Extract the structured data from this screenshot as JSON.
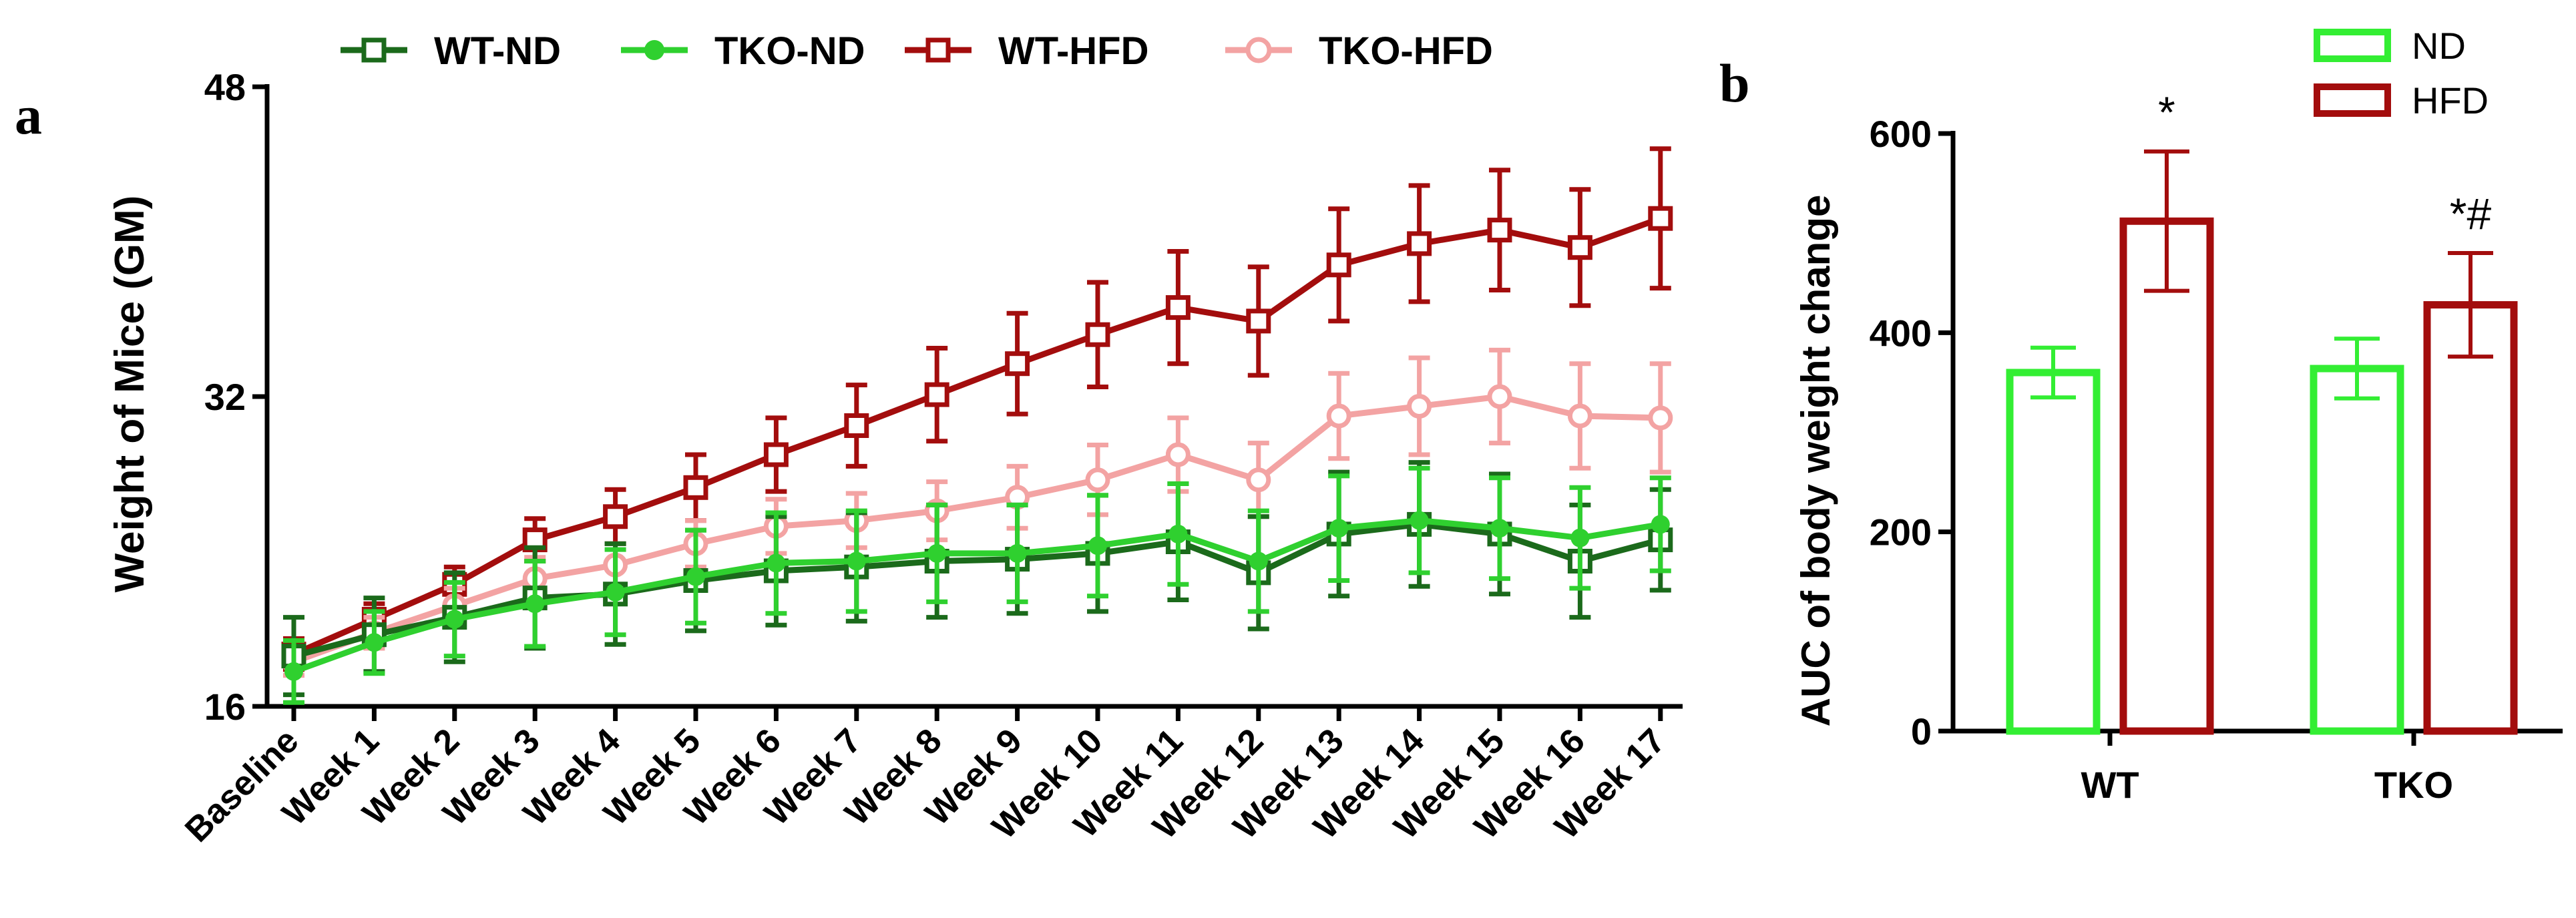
{
  "colors": {
    "wt_nd": "#1b6a1b",
    "tko_nd": "#2fd02f",
    "wt_hfd": "#a30d0d",
    "tko_hfd": "#f3a3a3",
    "nd_bar": "#33ee33",
    "hfd_bar": "#a30d0d",
    "axis": "#000000"
  },
  "chart_data": [
    {
      "panel": "a",
      "type": "line",
      "ylabel": "Weight of Mice (GM)",
      "xlabel": "",
      "ylim": [
        16,
        48
      ],
      "yticks": [
        "16",
        "32",
        "48"
      ],
      "categories": [
        "Baseline",
        "Week 1",
        "Week 2",
        "Week 3",
        "Week 4",
        "Week 5",
        "Week 6",
        "Week 7",
        "Week 8",
        "Week 9",
        "Week 10",
        "Week 11",
        "Week 12",
        "Week 13",
        "Week 14",
        "Week 15",
        "Week 16",
        "Week 17"
      ],
      "legend_position": "top",
      "series": [
        {
          "name": "WT-ND",
          "marker": "open-square",
          "color_key": "wt_nd",
          "values": [
            18.6,
            19.7,
            20.6,
            21.6,
            21.8,
            22.5,
            23.0,
            23.2,
            23.5,
            23.6,
            23.9,
            24.5,
            22.9,
            24.9,
            25.4,
            24.9,
            23.5,
            24.6
          ],
          "errors": [
            2.0,
            1.9,
            2.3,
            2.6,
            2.6,
            2.6,
            2.8,
            2.8,
            2.9,
            2.8,
            3.0,
            3.0,
            2.9,
            3.2,
            3.2,
            3.1,
            2.9,
            2.6
          ]
        },
        {
          "name": "TKO-ND",
          "marker": "filled-circle",
          "color_key": "tko_nd",
          "values": [
            17.8,
            19.3,
            20.5,
            21.3,
            21.9,
            22.7,
            23.4,
            23.5,
            23.9,
            23.9,
            24.3,
            24.9,
            23.5,
            25.2,
            25.6,
            25.2,
            24.7,
            25.4
          ],
          "errors": [
            1.6,
            1.6,
            1.9,
            2.2,
            2.2,
            2.4,
            2.6,
            2.6,
            2.5,
            2.5,
            2.6,
            2.6,
            2.6,
            2.7,
            2.7,
            2.6,
            2.6,
            2.4
          ]
        },
        {
          "name": "WT-HFD",
          "marker": "open-square",
          "color_key": "wt_hfd",
          "values": [
            18.7,
            20.5,
            22.3,
            24.6,
            25.8,
            27.3,
            29.0,
            30.5,
            32.1,
            33.7,
            35.2,
            36.6,
            35.9,
            38.8,
            39.9,
            40.6,
            39.7,
            41.2
          ],
          "errors": [
            0.8,
            0.8,
            0.9,
            1.1,
            1.4,
            1.7,
            1.9,
            2.1,
            2.4,
            2.6,
            2.7,
            2.9,
            2.8,
            2.9,
            3.0,
            3.1,
            3.0,
            3.6
          ]
        },
        {
          "name": "TKO-HFD",
          "marker": "open-circle",
          "color_key": "tko_hfd",
          "values": [
            18.3,
            19.8,
            21.2,
            22.6,
            23.3,
            24.4,
            25.3,
            25.6,
            26.1,
            26.8,
            27.7,
            29.0,
            27.7,
            31.0,
            31.5,
            32.0,
            31.0,
            30.9
          ],
          "errors": [
            0.7,
            0.8,
            0.9,
            1.1,
            1.1,
            1.2,
            1.4,
            1.4,
            1.5,
            1.6,
            1.8,
            1.9,
            1.9,
            2.2,
            2.5,
            2.4,
            2.7,
            2.8
          ]
        }
      ]
    },
    {
      "panel": "b",
      "type": "bar",
      "ylabel": "AUC of body weight change",
      "xlabel": "",
      "ylim": [
        0,
        600
      ],
      "yticks": [
        "0",
        "200",
        "400",
        "600"
      ],
      "categories": [
        "WT",
        "TKO"
      ],
      "legend_position": "top-right",
      "series": [
        {
          "name": "ND",
          "color_key": "nd_bar",
          "values": [
            360,
            364
          ],
          "errors": [
            25,
            30
          ]
        },
        {
          "name": "HFD",
          "color_key": "hfd_bar",
          "values": [
            512,
            428
          ],
          "errors": [
            70,
            52
          ]
        }
      ],
      "annotations": [
        "*",
        "*#"
      ]
    }
  ],
  "panel_labels": {
    "a": "a",
    "b": "b"
  }
}
